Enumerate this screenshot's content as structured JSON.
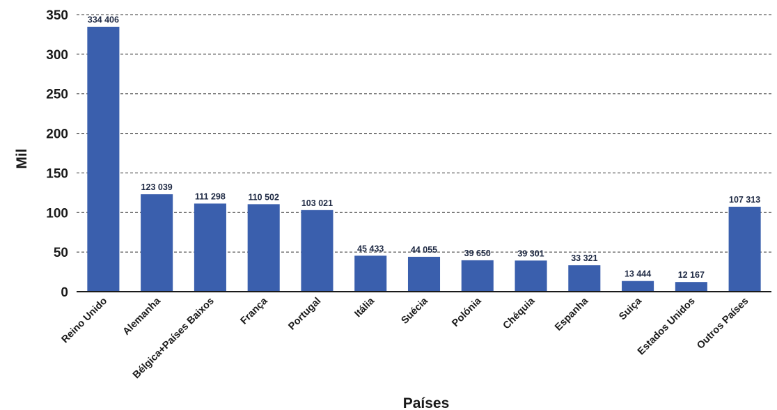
{
  "chart_data": {
    "type": "bar",
    "categories": [
      "Reino Unido",
      "Alemanha",
      "Bélgica+Países Baixos",
      "França",
      "Portugal",
      "Itália",
      "Suécia",
      "Polónia",
      "Chéquia",
      "Espanha",
      "Suiça",
      "Estados Unidos",
      "Outros Países"
    ],
    "values": [
      334406,
      123039,
      111298,
      110502,
      103021,
      45433,
      44055,
      39650,
      39301,
      33321,
      13444,
      12167,
      107313
    ],
    "data_labels": [
      "334 406",
      "123 039",
      "111 298",
      "110 502",
      "103 021",
      "45 433",
      "44 055",
      "39 650",
      "39 301",
      "33 321",
      "13 444",
      "12 167",
      "107 313"
    ],
    "yticks": [
      0,
      50,
      100,
      150,
      200,
      250,
      300,
      350
    ],
    "ylim": [
      0,
      350
    ],
    "value_scale": 1000,
    "xlabel": "Países",
    "ylabel": "Mil",
    "grid": true,
    "bar_color": "#3a5fad"
  }
}
